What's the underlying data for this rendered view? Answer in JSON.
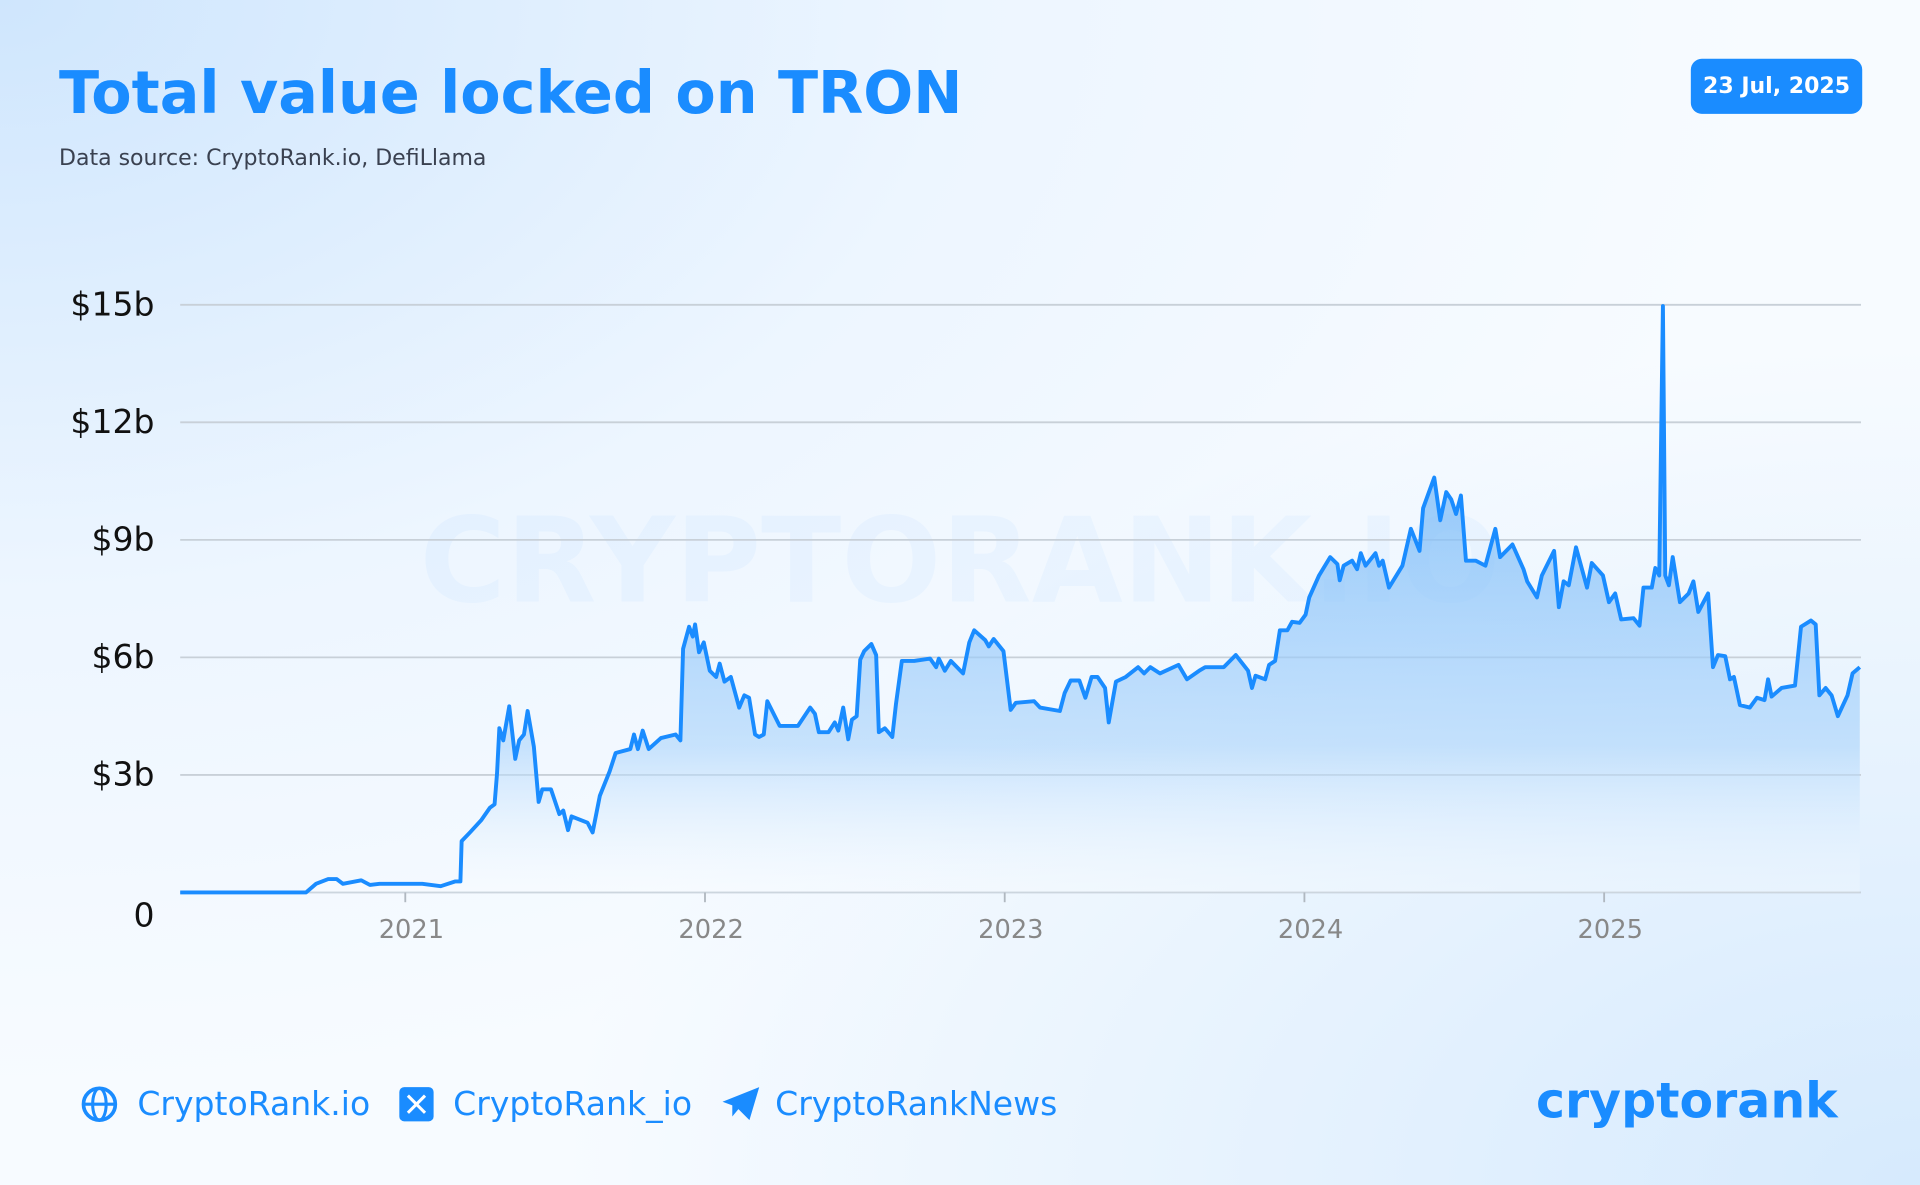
{
  "chart_data": {
    "type": "line",
    "title": "Total value locked on TRON",
    "subtitle": "Data source: CryptoRank.io, DefiLlama",
    "date_label": "23 Jul, 2025",
    "watermark": "CRYPTORANK.IO",
    "color": "#1a8cff",
    "grid": true,
    "xlim": [
      2020.249,
      2025.857
    ],
    "xticks": [
      2021,
      2022,
      2023,
      2024,
      2025
    ],
    "ylim": [
      0,
      15
    ],
    "yticks": [
      0,
      {
        "value": 3,
        "label": "$3b"
      },
      {
        "value": 6,
        "label": "$6b"
      },
      {
        "value": 9,
        "label": "$9b"
      },
      {
        "value": 12,
        "label": "$12b"
      },
      {
        "value": 15,
        "label": "$15b"
      }
    ],
    "x": [
      2020.249,
      2020.669,
      2020.702,
      2020.743,
      2020.771,
      2020.792,
      2020.853,
      2020.882,
      2020.914,
      2021.057,
      2021.118,
      2021.167,
      2021.184,
      2021.188,
      2021.216,
      2021.253,
      2021.282,
      2021.298,
      2021.306,
      2021.314,
      2021.327,
      2021.347,
      2021.367,
      2021.38,
      2021.396,
      2021.408,
      2021.429,
      2021.445,
      2021.457,
      2021.486,
      2021.514,
      2021.527,
      2021.543,
      2021.555,
      2021.608,
      2021.625,
      2021.649,
      2021.682,
      2021.702,
      2021.751,
      2021.763,
      2021.776,
      2021.792,
      2021.812,
      2021.853,
      2021.902,
      2021.918,
      2021.927,
      2021.947,
      2021.959,
      2021.967,
      2021.98,
      2021.996,
      2022.016,
      2022.037,
      2022.049,
      2022.065,
      2022.086,
      2022.114,
      2022.131,
      2022.147,
      2022.167,
      2022.18,
      2022.196,
      2022.208,
      2022.249,
      2022.31,
      2022.351,
      2022.367,
      2022.38,
      2022.412,
      2022.433,
      2022.445,
      2022.461,
      2022.478,
      2022.49,
      2022.506,
      2022.518,
      2022.531,
      2022.555,
      2022.571,
      2022.58,
      2022.6,
      2022.625,
      2022.637,
      2022.657,
      2022.698,
      2022.751,
      2022.771,
      2022.78,
      2022.8,
      2022.82,
      2022.861,
      2022.882,
      2022.898,
      2022.935,
      2022.947,
      2022.963,
      2022.996,
      2023.02,
      2023.037,
      2023.098,
      2023.118,
      2023.184,
      2023.2,
      2023.22,
      2023.249,
      2023.269,
      2023.29,
      2023.31,
      2023.335,
      2023.347,
      2023.371,
      2023.404,
      2023.445,
      2023.465,
      2023.486,
      2023.518,
      2023.58,
      2023.608,
      2023.649,
      2023.669,
      2023.731,
      2023.771,
      2023.812,
      2023.825,
      2023.837,
      2023.869,
      2023.882,
      2023.902,
      2023.918,
      2023.943,
      2023.959,
      2023.984,
      2024.004,
      2024.016,
      2024.049,
      2024.086,
      2024.11,
      2024.118,
      2024.131,
      2024.159,
      2024.176,
      2024.188,
      2024.204,
      2024.237,
      2024.249,
      2024.261,
      2024.282,
      2024.327,
      2024.355,
      2024.384,
      2024.396,
      2024.433,
      2024.453,
      2024.473,
      2024.49,
      2024.506,
      2024.522,
      2024.539,
      2024.571,
      2024.604,
      2024.637,
      2024.653,
      2024.694,
      2024.731,
      2024.743,
      2024.776,
      2024.792,
      2024.833,
      2024.849,
      2024.865,
      2024.882,
      2024.906,
      2024.943,
      2024.959,
      2024.996,
      2025.016,
      2025.037,
      2025.057,
      2025.098,
      2025.118,
      2025.131,
      2025.159,
      2025.171,
      2025.184,
      2025.196,
      2025.204,
      2025.216,
      2025.229,
      2025.253,
      2025.282,
      2025.298,
      2025.314,
      2025.347,
      2025.363,
      2025.38,
      2025.404,
      2025.42,
      2025.433,
      2025.453,
      2025.486,
      2025.51,
      2025.535,
      2025.547,
      2025.559,
      2025.592,
      2025.637,
      2025.657,
      2025.69,
      2025.706,
      2025.718,
      2025.739,
      2025.759,
      2025.78,
      2025.812,
      2025.829,
      2025.853
    ],
    "values": [
      0,
      0,
      0.22,
      0.34,
      0.34,
      0.22,
      0.31,
      0.19,
      0.22,
      0.22,
      0.16,
      0.28,
      0.28,
      1.31,
      1.53,
      1.84,
      2.16,
      2.25,
      3.03,
      4.19,
      3.88,
      4.75,
      3.41,
      3.88,
      4.03,
      4.63,
      3.72,
      2.31,
      2.63,
      2.63,
      2.0,
      2.09,
      1.59,
      1.94,
      1.78,
      1.53,
      2.47,
      3.09,
      3.56,
      3.66,
      4.03,
      3.66,
      4.13,
      3.66,
      3.94,
      4.03,
      3.88,
      6.22,
      6.78,
      6.53,
      6.84,
      6.13,
      6.38,
      5.66,
      5.5,
      5.84,
      5.38,
      5.5,
      4.72,
      5.03,
      4.97,
      4.03,
      3.97,
      4.03,
      4.88,
      4.25,
      4.25,
      4.72,
      4.56,
      4.09,
      4.09,
      4.34,
      4.13,
      4.72,
      3.91,
      4.41,
      4.5,
      5.94,
      6.16,
      6.34,
      6.06,
      4.09,
      4.19,
      3.97,
      4.81,
      5.91,
      5.91,
      5.97,
      5.75,
      5.97,
      5.66,
      5.91,
      5.59,
      6.38,
      6.69,
      6.44,
      6.28,
      6.47,
      6.16,
      4.66,
      4.84,
      4.88,
      4.72,
      4.63,
      5.09,
      5.41,
      5.41,
      4.97,
      5.5,
      5.5,
      5.22,
      4.34,
      5.38,
      5.5,
      5.75,
      5.59,
      5.75,
      5.59,
      5.81,
      5.44,
      5.66,
      5.75,
      5.75,
      6.06,
      5.66,
      5.22,
      5.53,
      5.44,
      5.81,
      5.91,
      6.69,
      6.69,
      6.91,
      6.88,
      7.09,
      7.53,
      8.09,
      8.56,
      8.38,
      7.97,
      8.34,
      8.47,
      8.25,
      8.66,
      8.34,
      8.66,
      8.34,
      8.47,
      7.78,
      8.34,
      9.28,
      8.72,
      9.81,
      10.59,
      9.5,
      10.22,
      10.03,
      9.66,
      10.13,
      8.47,
      8.47,
      8.34,
      9.28,
      8.56,
      8.88,
      8.25,
      7.94,
      7.53,
      8.09,
      8.72,
      7.28,
      7.94,
      7.84,
      8.81,
      7.78,
      8.41,
      8.09,
      7.41,
      7.63,
      6.97,
      7.0,
      6.81,
      7.78,
      7.78,
      8.28,
      8.09,
      14.97,
      8.09,
      7.84,
      8.56,
      7.41,
      7.63,
      7.94,
      7.16,
      7.63,
      5.75,
      6.06,
      6.03,
      5.44,
      5.5,
      4.78,
      4.72,
      4.97,
      4.91,
      5.44,
      5.0,
      5.22,
      5.28,
      6.78,
      6.94,
      6.84,
      5.03,
      5.22,
      5.03,
      4.5,
      5.03,
      5.59,
      5.75
    ]
  },
  "footer": {
    "links": [
      "CryptoRank.io",
      "CryptoRank_io",
      "CryptoRankNews"
    ],
    "logo": "cryptorank"
  }
}
